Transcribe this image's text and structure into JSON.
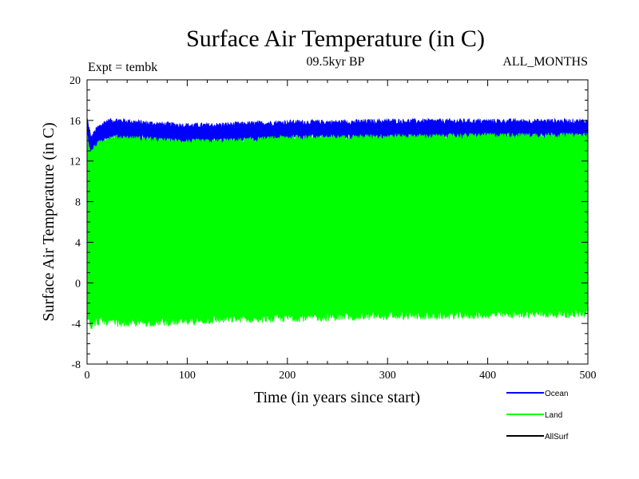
{
  "chart_data": {
    "type": "line",
    "title": "Surface Air Temperature (in C)",
    "subtitle_left": "Expt = tembk",
    "subtitle_center": "09.5kyr BP",
    "subtitle_right": "ALL_MONTHS",
    "xlabel": "Time (in years since start)",
    "ylabel": "Surface Air Temperature (in C)",
    "xlim": [
      0,
      500
    ],
    "ylim": [
      -8,
      20
    ],
    "xticks": [
      0,
      100,
      200,
      300,
      400,
      500
    ],
    "yticks": [
      -8,
      -4,
      0,
      4,
      8,
      12,
      16,
      20
    ],
    "series": [
      {
        "name": "Ocean",
        "color": "#0000ff",
        "x": [
          0,
          2,
          4,
          6,
          10,
          15,
          20,
          30,
          50,
          75,
          100,
          125,
          150,
          175,
          200,
          250,
          300,
          350,
          400,
          450,
          500
        ],
        "max": [
          16.2,
          15.2,
          14.2,
          14.6,
          15.2,
          15.6,
          15.9,
          16.0,
          15.8,
          15.6,
          15.5,
          15.5,
          15.6,
          15.7,
          15.8,
          15.8,
          15.9,
          15.9,
          15.9,
          15.9,
          15.9
        ],
        "min": [
          14.6,
          13.3,
          12.8,
          13.2,
          13.6,
          14.0,
          14.2,
          14.3,
          14.2,
          14.0,
          13.9,
          13.9,
          14.0,
          14.1,
          14.3,
          14.3,
          14.4,
          14.4,
          14.5,
          14.5,
          14.5
        ]
      },
      {
        "name": "Land",
        "color": "#00ff00",
        "x": [
          0,
          2,
          4,
          6,
          10,
          15,
          20,
          30,
          50,
          75,
          100,
          125,
          150,
          175,
          200,
          250,
          300,
          350,
          400,
          450,
          500
        ],
        "max": [
          14.6,
          13.3,
          12.8,
          13.2,
          13.6,
          14.0,
          14.2,
          14.3,
          14.2,
          14.0,
          13.9,
          13.9,
          14.0,
          14.1,
          14.3,
          14.3,
          14.4,
          14.4,
          14.5,
          14.5,
          14.5
        ],
        "min": [
          -3.0,
          -3.6,
          -4.2,
          -4.0,
          -3.8,
          -3.7,
          -3.8,
          -3.9,
          -3.9,
          -3.8,
          -3.8,
          -3.6,
          -3.5,
          -3.5,
          -3.4,
          -3.3,
          -3.2,
          -3.2,
          -3.1,
          -3.0,
          -3.0
        ]
      },
      {
        "name": "AllSurf",
        "color": "#000000",
        "x": [],
        "max": [],
        "min": []
      }
    ],
    "legend": [
      "Ocean",
      "Land",
      "AllSurf"
    ],
    "legend_position": "bottom-right"
  }
}
